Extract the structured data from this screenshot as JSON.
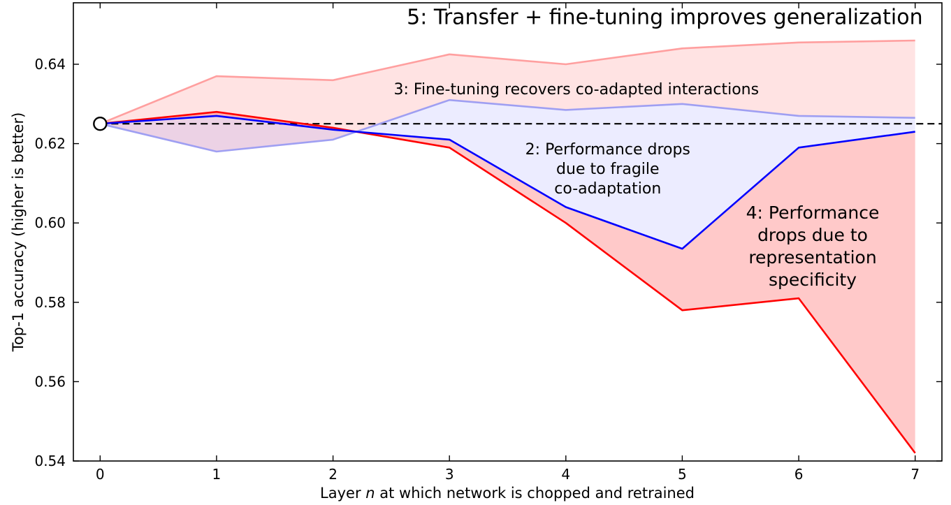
{
  "chart_data": {
    "type": "line",
    "title": "",
    "xlabel_parts": [
      "Layer ",
      "n",
      " at which network is chopped and retrained"
    ],
    "ylabel": "Top-1 accuracy (higher is better)",
    "x": [
      0,
      1,
      2,
      3,
      4,
      5,
      6,
      7
    ],
    "xlim": [
      -0.23,
      7.23
    ],
    "ylim": [
      0.54,
      0.6555
    ],
    "xticks": [
      0,
      1,
      2,
      3,
      4,
      5,
      6,
      7
    ],
    "yticks": [
      0.54,
      0.56,
      0.58,
      0.6,
      0.62,
      0.64
    ],
    "grid": false,
    "legend": "none",
    "baseline": {
      "value": 0.625,
      "x_start": 0,
      "style": "dashed",
      "color": "#000000"
    },
    "start_marker": {
      "x": 0,
      "y": 0.625,
      "shape": "open-circle"
    },
    "series": [
      {
        "id": "transfer_finetune",
        "color": "#ff9f9f",
        "values": [
          0.625,
          0.637,
          0.636,
          0.6425,
          0.64,
          0.644,
          0.6455,
          0.646
        ]
      },
      {
        "id": "finetune",
        "color": "#9f9ff2",
        "values": [
          0.625,
          0.618,
          0.621,
          0.631,
          0.6285,
          0.63,
          0.627,
          0.6265
        ]
      },
      {
        "id": "transfer",
        "color": "#ff0000",
        "values": [
          0.625,
          0.628,
          0.624,
          0.619,
          0.6,
          0.578,
          0.581,
          0.542
        ]
      },
      {
        "id": "chop_retrain",
        "color": "#0000ff",
        "values": [
          0.625,
          0.627,
          0.6235,
          0.621,
          0.604,
          0.5935,
          0.619,
          0.623
        ]
      }
    ],
    "fills": [
      {
        "name": "region-5-fill",
        "between": [
          "transfer_finetune",
          "finetune"
        ],
        "color": "rgba(255,40,40,0.13)"
      },
      {
        "name": "region-2-fill",
        "between": [
          "finetune",
          "chop_retrain"
        ],
        "color": "rgba(40,40,255,0.09)"
      },
      {
        "name": "region-4-fill",
        "between": [
          "chop_retrain",
          "transfer"
        ],
        "color": "rgba(255,40,40,0.25)"
      }
    ],
    "annotations": [
      {
        "name": "annotation-5",
        "x": 4.85,
        "y": 0.652,
        "size": 30,
        "color": "#000000",
        "lines": [
          "5: Transfer + fine-tuning improves generalization"
        ]
      },
      {
        "name": "annotation-3",
        "x": 4.09,
        "y": 0.6338,
        "size": 22,
        "color": "#000000",
        "lines": [
          "3: Fine-tuning recovers co-adapted interactions"
        ]
      },
      {
        "name": "annotation-2",
        "x": 4.36,
        "y": 0.6187,
        "size": 22,
        "color": "#000000",
        "lines": [
          "2: Performance drops",
          "due to fragile",
          "co-adaptation"
        ]
      },
      {
        "name": "annotation-4",
        "x": 6.12,
        "y": 0.6027,
        "size": 25,
        "color": "#000000",
        "lines": [
          "4: Performance",
          "drops due to",
          "representation",
          "specificity"
        ]
      }
    ]
  }
}
